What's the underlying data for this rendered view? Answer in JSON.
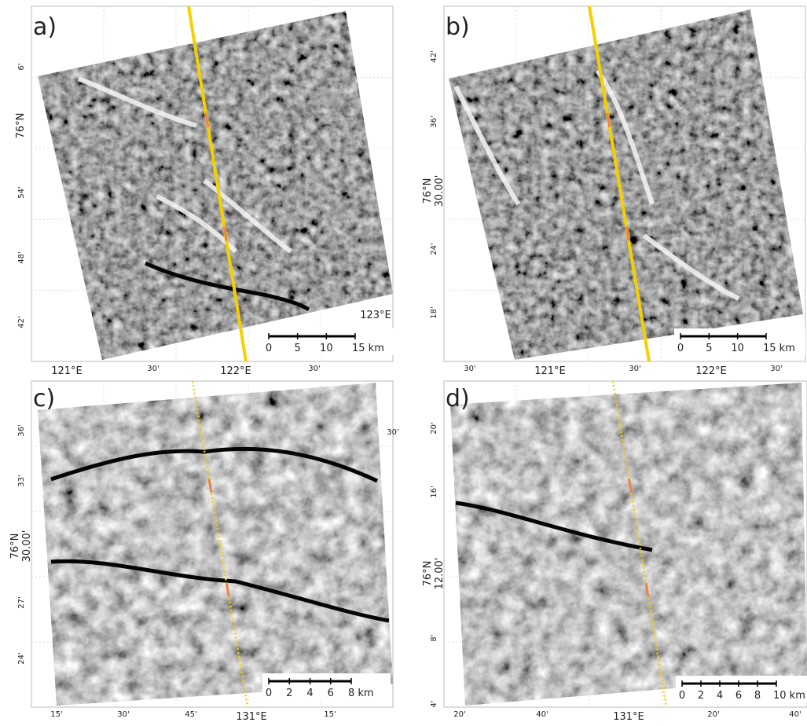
{
  "panels": [
    {
      "label": "a)",
      "y_ticks": [
        "6'",
        "76°N",
        "54'",
        "48'",
        "42'"
      ],
      "x_ticks": [
        "121°E",
        "30'",
        "122°E",
        "30'"
      ],
      "corner_label": "123°E",
      "scale": [
        "0",
        "5",
        "10",
        "15 km"
      ]
    },
    {
      "label": "b)",
      "y_ticks": [
        "42'",
        "36'",
        [
          "76°N",
          "30.00'"
        ],
        "24'",
        "18'"
      ],
      "x_ticks": [
        "30'",
        "121°E",
        "30'",
        "122°E",
        "30'"
      ],
      "scale": [
        "0",
        "5",
        "10",
        "15 km"
      ]
    },
    {
      "label": "c)",
      "y_ticks": [
        "36'",
        "33'",
        [
          "76°N",
          "30.00'"
        ],
        "27'",
        "24'"
      ],
      "x_ticks": [
        "15'",
        "30'",
        "45'",
        "131°E",
        "15'"
      ],
      "corner_label": "30'",
      "scale": [
        "0",
        "2",
        "4",
        "6",
        "8 km"
      ]
    },
    {
      "label": "d)",
      "y_ticks": [
        "20'",
        "16'",
        [
          "76°N",
          "12.00'"
        ],
        "8'",
        "4'"
      ],
      "x_ticks": [
        "20'",
        "40'",
        "131°E",
        "20'",
        "40'"
      ],
      "scale": [
        "0",
        "2",
        "4",
        "6",
        "8",
        "10 km"
      ]
    }
  ]
}
